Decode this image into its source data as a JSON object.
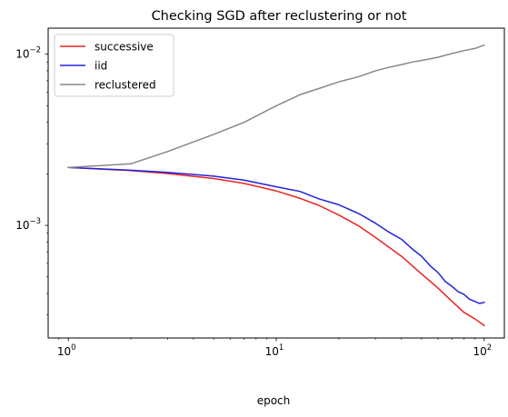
{
  "chart_data": {
    "type": "line",
    "title": "Checking SGD after reclustering or not",
    "xlabel": "epoch",
    "ylabel": "",
    "xscale": "log",
    "yscale": "log",
    "xlim": [
      0.8,
      125
    ],
    "ylim": [
      0.00022,
      0.0142
    ],
    "grid": false,
    "legend_position": "top-left",
    "x_ticks": [
      {
        "value": 1,
        "base": "10",
        "exp": "0"
      },
      {
        "value": 10,
        "base": "10",
        "exp": "1"
      },
      {
        "value": 100,
        "base": "10",
        "exp": "2"
      }
    ],
    "y_ticks": [
      {
        "value": 0.001,
        "base": "10",
        "exp": "−3"
      },
      {
        "value": 0.01,
        "base": "10",
        "exp": "−2"
      }
    ],
    "series": [
      {
        "name": "successive",
        "color": "#ee2222",
        "x": [
          1,
          2,
          3,
          5,
          7,
          10,
          13,
          16,
          20,
          25,
          30,
          40,
          50,
          60,
          70,
          80,
          90,
          100
        ],
        "y": [
          0.00218,
          0.00209,
          0.00201,
          0.00188,
          0.00176,
          0.00159,
          0.00144,
          0.00131,
          0.00115,
          0.00099,
          0.00085,
          0.00066,
          0.00052,
          0.00043,
          0.00036,
          0.00031,
          0.000285,
          0.00026
        ]
      },
      {
        "name": "iid",
        "color": "#2222dd",
        "x": [
          1,
          2,
          3,
          5,
          7,
          10,
          13,
          16,
          20,
          25,
          30,
          35,
          40,
          45,
          50,
          55,
          60,
          65,
          70,
          75,
          80,
          85,
          90,
          95,
          100
        ],
        "y": [
          0.00218,
          0.0021,
          0.00204,
          0.00194,
          0.00184,
          0.00168,
          0.00158,
          0.00143,
          0.00132,
          0.00117,
          0.00103,
          0.00091,
          0.00083,
          0.00073,
          0.00066,
          0.00058,
          0.00053,
          0.00047,
          0.00044,
          0.00041,
          0.000395,
          0.00037,
          0.00036,
          0.00035,
          0.000355
        ]
      },
      {
        "name": "reclustered",
        "color": "#888888",
        "x": [
          1,
          2,
          3,
          5,
          7,
          10,
          13,
          16,
          20,
          25,
          30,
          35,
          40,
          45,
          50,
          55,
          60,
          70,
          80,
          90,
          100
        ],
        "y": [
          0.00218,
          0.00229,
          0.0027,
          0.0034,
          0.004,
          0.005,
          0.0058,
          0.0063,
          0.0069,
          0.0074,
          0.008,
          0.0084,
          0.0087,
          0.009,
          0.0092,
          0.0094,
          0.0096,
          0.0101,
          0.0105,
          0.0108,
          0.0113
        ]
      }
    ]
  }
}
